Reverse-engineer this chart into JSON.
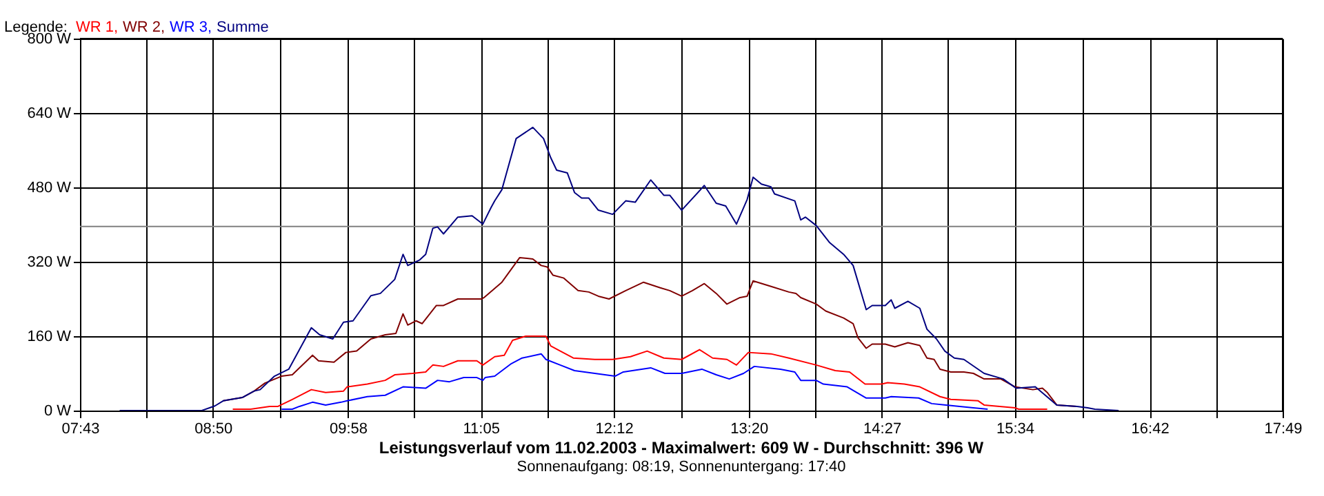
{
  "chart_data": {
    "type": "line",
    "title": "Leistungsverlauf vom 11.02.2003 - Maximalwert: 609 W - Durchschnitt: 396 W",
    "subtitle": "Sonnenaufgang: 08:19, Sonnenuntergang: 17:40",
    "legend_title": "Legende:",
    "legend": "top left",
    "grid": true,
    "line_style": "solid",
    "xlim": [
      7.717,
      17.817
    ],
    "xticks": [
      {
        "value": 7.717,
        "label": "07:43"
      },
      {
        "value": 8.275,
        "label": null
      },
      {
        "value": 8.833,
        "label": "08:50"
      },
      {
        "value": 9.4,
        "label": null
      },
      {
        "value": 9.967,
        "label": "09:58"
      },
      {
        "value": 10.525,
        "label": null
      },
      {
        "value": 11.083,
        "label": "11:05"
      },
      {
        "value": 11.642,
        "label": null
      },
      {
        "value": 12.2,
        "label": "12:12"
      },
      {
        "value": 12.767,
        "label": null
      },
      {
        "value": 13.333,
        "label": "13:20"
      },
      {
        "value": 13.892,
        "label": null
      },
      {
        "value": 14.45,
        "label": "14:27"
      },
      {
        "value": 15.008,
        "label": null
      },
      {
        "value": 15.567,
        "label": "15:34"
      },
      {
        "value": 16.133,
        "label": null
      },
      {
        "value": 16.7,
        "label": "16:42"
      },
      {
        "value": 17.258,
        "label": null
      },
      {
        "value": 17.817,
        "label": "17:49"
      }
    ],
    "ylim": [
      0,
      800
    ],
    "yticks": [
      {
        "value": 0,
        "label": "0 W"
      },
      {
        "value": 160,
        "label": "160 W"
      },
      {
        "value": 320,
        "label": "320 W"
      },
      {
        "value": 480,
        "label": "480 W"
      },
      {
        "value": 640,
        "label": "640 W"
      },
      {
        "value": 800,
        "label": "800 W"
      }
    ],
    "ref_lines": [
      {
        "axis": "y",
        "value": 396,
        "color": "#808080"
      }
    ],
    "series": [
      {
        "name": "WR 1,",
        "color": "#ff0000",
        "x": [
          9.0,
          9.15,
          9.31,
          9.38,
          9.5,
          9.66,
          9.78,
          9.93,
          9.96,
          10.13,
          10.28,
          10.36,
          10.51,
          10.62,
          10.68,
          10.77,
          10.89,
          11.05,
          11.1,
          11.2,
          11.28,
          11.35,
          11.46,
          11.63,
          11.67,
          11.86,
          12.04,
          12.19,
          12.34,
          12.48,
          12.62,
          12.77,
          12.92,
          13.03,
          13.15,
          13.23,
          13.33,
          13.52,
          13.67,
          13.9,
          14.06,
          14.18,
          14.31,
          14.45,
          14.5,
          14.64,
          14.77,
          14.94,
          15.03,
          15.26,
          15.31,
          15.57,
          15.6,
          15.84
        ],
        "values": [
          3,
          3,
          9,
          9,
          24,
          45,
          39,
          42,
          51,
          57,
          65,
          77,
          80,
          83,
          98,
          95,
          107,
          107,
          98,
          116,
          119,
          151,
          160,
          160,
          139,
          113,
          110,
          110,
          116,
          128,
          113,
          110,
          131,
          113,
          110,
          98,
          125,
          122,
          113,
          98,
          86,
          83,
          57,
          57,
          60,
          57,
          51,
          30,
          24,
          21,
          12,
          6,
          3,
          3
        ]
      },
      {
        "name": "WR 2,",
        "color": "#800000",
        "x": [
          8.92,
          9.08,
          9.18,
          9.27,
          9.41,
          9.5,
          9.67,
          9.72,
          9.85,
          9.95,
          10.04,
          10.16,
          10.28,
          10.37,
          10.43,
          10.47,
          10.54,
          10.59,
          10.71,
          10.77,
          10.89,
          11.09,
          11.11,
          11.26,
          11.41,
          11.52,
          11.59,
          11.64,
          11.69,
          11.78,
          11.9,
          11.99,
          12.07,
          12.16,
          12.3,
          12.45,
          12.59,
          12.67,
          12.77,
          12.86,
          12.96,
          13.06,
          13.15,
          13.26,
          13.32,
          13.37,
          13.52,
          13.67,
          13.73,
          13.77,
          13.9,
          13.98,
          14.13,
          14.21,
          14.25,
          14.32,
          14.37,
          14.48,
          14.56,
          14.67,
          14.77,
          14.83,
          14.89,
          14.94,
          15.03,
          15.14,
          15.22,
          15.31,
          15.45,
          15.57,
          15.72,
          15.8,
          15.84,
          15.92,
          16.09
        ],
        "values": [
          21,
          28,
          42,
          59,
          74,
          77,
          119,
          107,
          104,
          125,
          128,
          154,
          163,
          166,
          208,
          184,
          193,
          187,
          226,
          226,
          240,
          240,
          243,
          276,
          329,
          326,
          312,
          309,
          291,
          285,
          258,
          255,
          246,
          240,
          258,
          276,
          264,
          258,
          246,
          258,
          273,
          252,
          229,
          243,
          246,
          279,
          267,
          255,
          252,
          243,
          229,
          214,
          199,
          187,
          157,
          134,
          143,
          143,
          137,
          146,
          140,
          113,
          110,
          89,
          83,
          83,
          80,
          68,
          68,
          51,
          45,
          48,
          39,
          12,
          9
        ]
      },
      {
        "name": "WR 3,",
        "color": "#0000ff",
        "x": [
          9.41,
          9.5,
          9.56,
          9.67,
          9.78,
          9.91,
          9.96,
          10.13,
          10.28,
          10.43,
          10.62,
          10.72,
          10.82,
          10.94,
          11.05,
          11.1,
          11.12,
          11.2,
          11.34,
          11.43,
          11.59,
          11.63,
          11.75,
          11.87,
          12.04,
          12.21,
          12.28,
          12.51,
          12.63,
          12.77,
          12.94,
          13.06,
          13.17,
          13.29,
          13.38,
          13.6,
          13.72,
          13.77,
          13.9,
          13.96,
          14.16,
          14.32,
          14.48,
          14.53,
          14.76,
          14.87,
          14.99,
          15.22,
          15.34
        ],
        "values": [
          3,
          3,
          9,
          18,
          12,
          18,
          21,
          30,
          33,
          51,
          48,
          65,
          62,
          71,
          71,
          65,
          71,
          74,
          101,
          113,
          122,
          110,
          98,
          86,
          80,
          74,
          83,
          92,
          80,
          80,
          89,
          77,
          68,
          80,
          95,
          89,
          83,
          65,
          65,
          57,
          51,
          27,
          27,
          30,
          27,
          15,
          12,
          6,
          3
        ]
      },
      {
        "name": "Summe",
        "color": "#000080",
        "x": [
          8.05,
          8.74,
          8.85,
          8.92,
          9.08,
          9.18,
          9.23,
          9.35,
          9.47,
          9.66,
          9.73,
          9.84,
          9.93,
          10.01,
          10.16,
          10.24,
          10.36,
          10.43,
          10.47,
          10.57,
          10.62,
          10.68,
          10.72,
          10.77,
          10.89,
          11.01,
          11.1,
          11.17,
          11.2,
          11.26,
          11.38,
          11.52,
          11.61,
          11.67,
          11.72,
          11.81,
          11.87,
          11.93,
          11.99,
          12.07,
          12.19,
          12.3,
          12.38,
          12.51,
          12.62,
          12.67,
          12.77,
          12.96,
          13.06,
          13.14,
          13.23,
          13.32,
          13.37,
          13.44,
          13.52,
          13.55,
          13.72,
          13.77,
          13.81,
          13.9,
          14.01,
          14.13,
          14.21,
          14.32,
          14.37,
          14.48,
          14.53,
          14.56,
          14.67,
          14.77,
          14.83,
          14.91,
          14.98,
          15.06,
          15.14,
          15.31,
          15.47,
          15.58,
          15.74,
          15.81,
          15.92,
          16.09,
          16.18,
          16.24,
          16.44
        ],
        "values": [
          0,
          0,
          10,
          21,
          28,
          42,
          45,
          74,
          89,
          178,
          163,
          154,
          190,
          193,
          247,
          252,
          282,
          336,
          312,
          324,
          336,
          392,
          395,
          380,
          416,
          419,
          401,
          437,
          451,
          475,
          585,
          609,
          585,
          544,
          517,
          511,
          469,
          457,
          457,
          431,
          422,
          451,
          448,
          496,
          463,
          463,
          431,
          484,
          446,
          440,
          401,
          454,
          502,
          487,
          481,
          466,
          451,
          410,
          416,
          398,
          362,
          336,
          312,
          217,
          226,
          226,
          238,
          220,
          235,
          220,
          175,
          154,
          128,
          113,
          110,
          80,
          68,
          48,
          51,
          36,
          12,
          9,
          6,
          3,
          0
        ]
      }
    ]
  }
}
